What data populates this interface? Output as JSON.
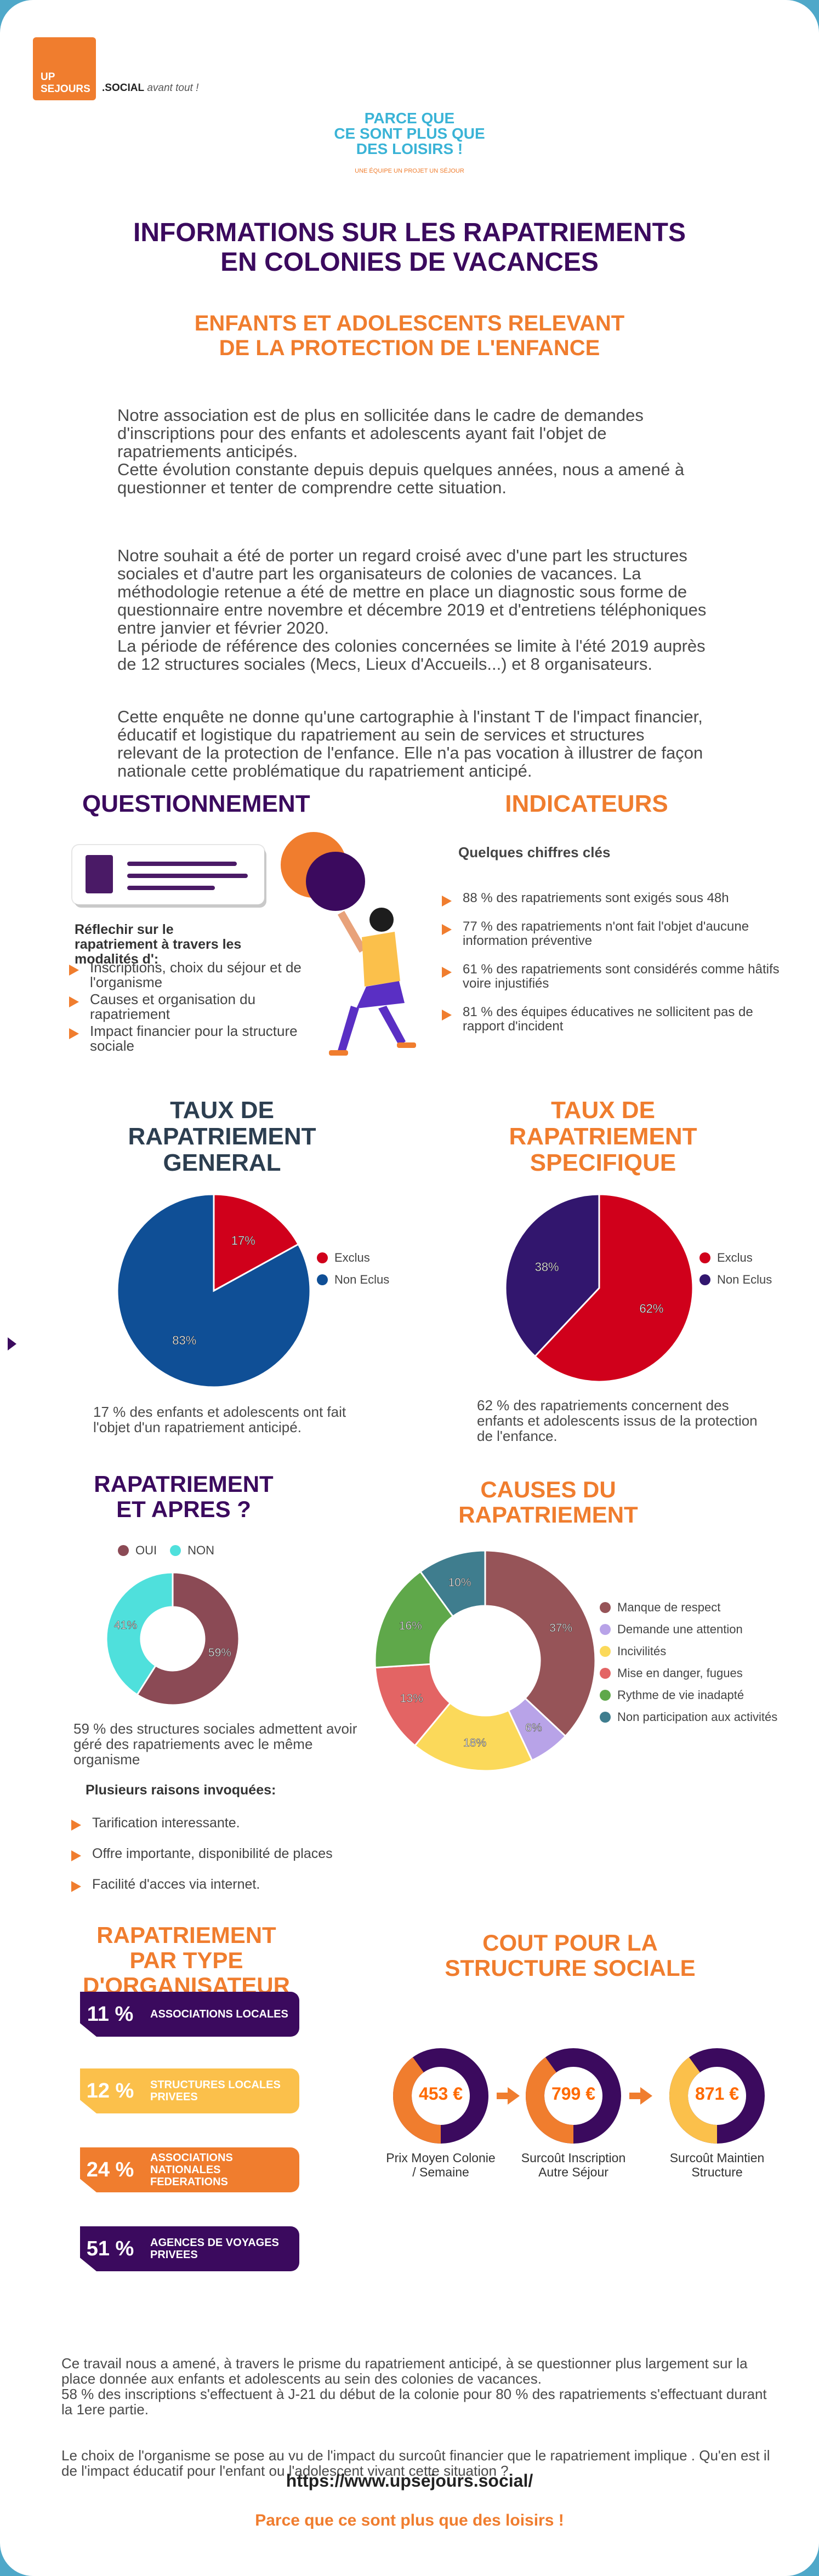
{
  "header": {
    "logo_line1": "UP",
    "logo_line2": "SEJOURS",
    "logo_suffix": ".SOCIAL",
    "logo_tagline": "avant tout !",
    "slogan_lines": [
      "PARCE QUE",
      "CE SONT PLUS QUE",
      "DES LOISIRS !"
    ],
    "slogan_sub": "UNE ÉQUIPE UN PROJET UN SÉJOUR"
  },
  "main_title_lines": [
    "INFORMATIONS SUR LES RAPATRIEMENTS",
    "EN COLONIES DE VACANCES"
  ],
  "subtitle_lines": [
    "ENFANTS ET ADOLESCENTS RELEVANT",
    "DE LA PROTECTION DE L'ENFANCE"
  ],
  "intro_paragraphs": [
    "Notre association est de plus en sollicitée dans le cadre de demandes d'inscriptions pour des enfants et adolescents ayant fait l'objet de rapatriements anticipés.\nCette évolution constante depuis depuis quelques années, nous a amené à questionner et tenter de comprendre cette situation.",
    "Notre souhait a été de porter un regard croisé avec d'une part les structures sociales et d'autre part les organisateurs de colonies de vacances. La méthodologie retenue a été de mettre en place un diagnostic sous forme de questionnaire entre novembre et décembre 2019 et d'entretiens téléphoniques entre janvier et février 2020.\nLa période de référence des colonies concernées se limite à l'été 2019 auprès de 12 structures sociales (Mecs, Lieux d'Accueils...) et 8 organisateurs.",
    "Cette enquête ne donne qu'une cartographie à l'instant T de l'impact financier, éducatif et logistique du rapatriement au sein de services et structures relevant de la protection de l'enfance. Elle n'a pas vocation à illustrer de façon nationale cette problématique du rapatriement anticipé."
  ],
  "questionnement": {
    "title": "QUESTIONNEMENT",
    "lead": "Réflechir sur le rapatriement à travers les modalités d':",
    "items": [
      "Inscriptions, choix du séjour et de l'organisme",
      "Causes et organisation du rapatriement",
      "Impact financier pour la structure sociale"
    ]
  },
  "indicateurs": {
    "title": "INDICATEURS",
    "subtitle": "Quelques chiffres clés",
    "items": [
      "88 % des rapatriements sont exigés sous 48h",
      "77 % des rapatriements n'ont fait l'objet d'aucune information préventive",
      "61 % des rapatriements sont considérés comme hâtifs  voire injustifiés",
      "81 % des équipes éducatives ne sollicitent pas de rapport d'incident"
    ]
  },
  "taux_general": {
    "title_lines": [
      "TAUX DE",
      "RAPATRIEMENT",
      "GENERAL"
    ],
    "caption": "17 % des enfants et adolescents ont fait l'objet d'un rapatriement anticipé."
  },
  "taux_specifique": {
    "title_lines": [
      "TAUX DE",
      "RAPATRIEMENT",
      "SPECIFIQUE"
    ],
    "caption": "62 % des rapatriements concernent des enfants et adolescents issus de la protection de l'enfance."
  },
  "apres": {
    "title_lines": [
      "RAPATRIEMENT",
      "ET APRES ?"
    ],
    "caption": "59 %  des  structures sociales admettent avoir géré des rapatriements avec le même organisme",
    "reasons_title": "Plusieurs raisons invoquées:",
    "reasons": [
      "Tarification interessante.",
      "Offre importante, disponibilité de places",
      "Facilité d'acces via internet."
    ]
  },
  "causes": {
    "title_lines": [
      "CAUSES DU",
      "RAPATRIEMENT"
    ]
  },
  "organisateur": {
    "title_lines": [
      "RAPATRIEMENT",
      "PAR TYPE",
      "D'ORGANISATEUR"
    ],
    "rows": [
      {
        "pct": "11 %",
        "label": "ASSOCIATIONS LOCALES",
        "color": "#3b0a5e"
      },
      {
        "pct": "12 %",
        "label": "STRUCTURES LOCALES PRIVEES",
        "color": "#fbc04b"
      },
      {
        "pct": "24 %",
        "label": "ASSOCIATIONS NATIONALES FEDERATIONS",
        "color": "#f07d2e"
      },
      {
        "pct": "51 %",
        "label": "AGENCES DE VOYAGES PRIVEES",
        "color": "#3b0a5e"
      }
    ]
  },
  "cout": {
    "title_lines": [
      "COUT POUR LA",
      "STRUCTURE SOCIALE"
    ],
    "items": [
      {
        "value": "453 €",
        "caption": "Prix Moyen Colonie / Semaine"
      },
      {
        "value": "799 €",
        "caption": "Surcoût  Inscription Autre Séjour"
      },
      {
        "value": "871 €",
        "caption": "Surcoût Maintien Structure"
      }
    ]
  },
  "conclusion": [
    "Ce travail nous a amené, à travers le prisme du rapatriement anticipé, à se questionner plus largement sur la place donnée aux enfants et adolescents au sein des colonies de vacances.\n58 % des inscriptions s'effectuent à J-21 du début de la colonie pour 80 % des rapatriements s'effectuant durant la 1ere partie.",
    "Le choix de l'organisme se pose au vu de l'impact du surcoût financier que le rapatriement implique . Qu'en est il de l'impact éducatif pour l'enfant ou l'adolescent vivant cette situation ?"
  ],
  "footer": {
    "url": "https://www.upsejours.social/",
    "slogan": "Parce que ce sont plus que des loisirs !"
  },
  "chart_data": [
    {
      "type": "pie",
      "categories": [
        "Exclus",
        "Non Eclus"
      ],
      "values": [
        17,
        83
      ],
      "labels": [
        "17%",
        "83%"
      ],
      "colors": [
        "#d0001b",
        "#0f4f96"
      ],
      "legend": "right"
    },
    {
      "type": "pie",
      "categories": [
        "Exclus",
        "Non Eclus"
      ],
      "values": [
        62,
        38
      ],
      "labels": [
        "62%",
        "38%"
      ],
      "colors": [
        "#d0001b",
        "#32166e"
      ],
      "legend": "right"
    },
    {
      "type": "pie",
      "donut": true,
      "categories": [
        "OUI",
        "NON"
      ],
      "values": [
        59,
        41
      ],
      "labels": [
        "59%",
        "41%"
      ],
      "colors": [
        "#8b4a55",
        "#4fe0dc"
      ],
      "legend": "top"
    },
    {
      "type": "pie",
      "donut": true,
      "categories": [
        "Manque de respect",
        "Demande une attention",
        "Incivilités",
        "Mise en danger, fugues",
        "Rythme de vie inadapté",
        "Non participation aux activités"
      ],
      "values": [
        37,
        6,
        18,
        13,
        16,
        10
      ],
      "labels": [
        "37%",
        "6%",
        "18%",
        "13%",
        "16%",
        "10%"
      ],
      "colors": [
        "#965458",
        "#b8a3e8",
        "#fbd95a",
        "#e36464",
        "#5fa84a",
        "#3f7d8e"
      ],
      "legend": "right"
    },
    {
      "type": "pie",
      "donut": true,
      "categories": [
        "453 €",
        "799 €",
        "871 €"
      ],
      "values": [
        453,
        799,
        871
      ],
      "colors": [
        "#f07d2e",
        "#3b0a5e",
        "#fbc04b"
      ]
    }
  ]
}
